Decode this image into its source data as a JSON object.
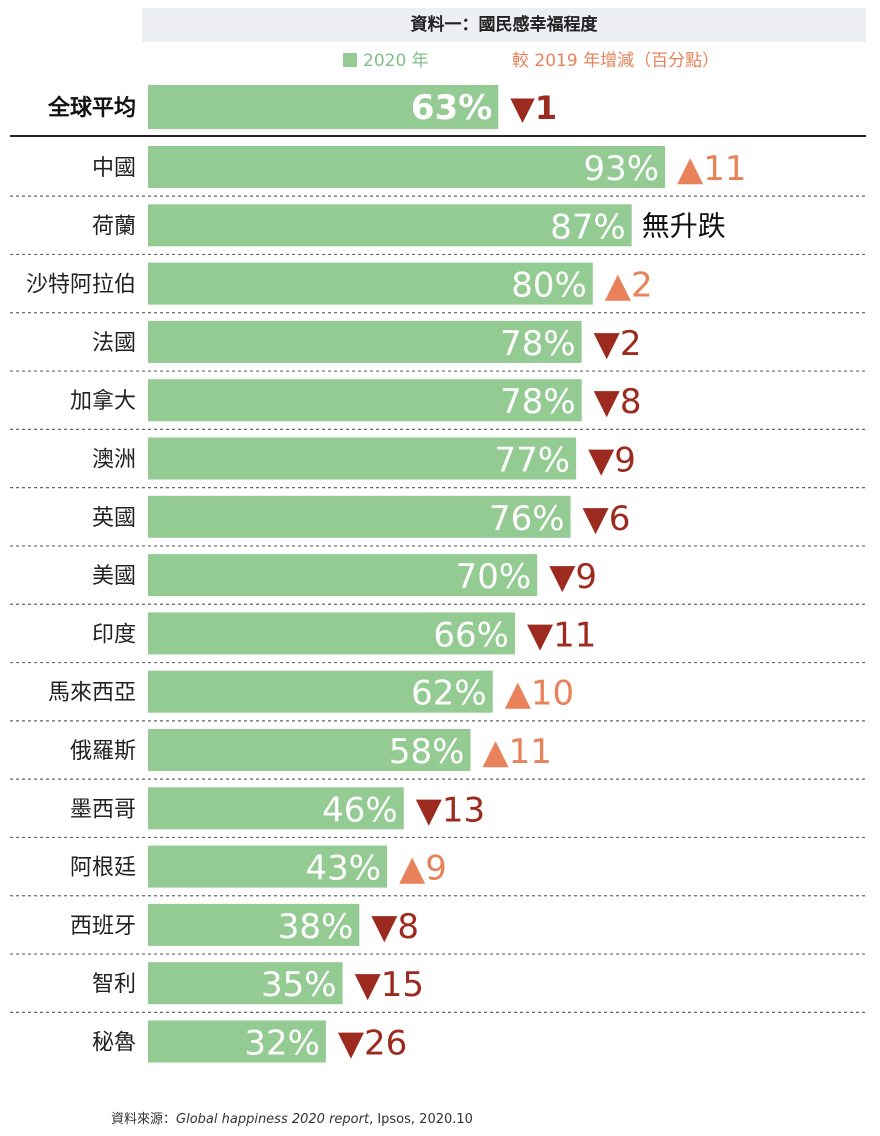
{
  "title": "資料一：國民感幸福程度",
  "legend": {
    "current": "2020 年",
    "change": "較 2019 年增減（百分點）"
  },
  "source": {
    "prefix": "資料來源：",
    "report": "Global happiness 2020 report",
    "suffix": ", Ipsos, 2020.10"
  },
  "colors": {
    "bar": "#93cb93",
    "bar_text": "#ffffff",
    "up": "#e8825a",
    "down": "#9c2a1e",
    "no_change": "#111111",
    "average_text": "#111111"
  },
  "chart_data": {
    "type": "bar",
    "orientation": "horizontal",
    "xlim": [
      0,
      100
    ],
    "unit": "%",
    "average": {
      "label": "全球平均",
      "value": 63,
      "value_label": "63%",
      "change": -1,
      "change_label": "▼1",
      "direction": "down"
    },
    "categories": [
      "中國",
      "荷蘭",
      "沙特阿拉伯",
      "法國",
      "加拿大",
      "澳洲",
      "英國",
      "美國",
      "印度",
      "馬來西亞",
      "俄羅斯",
      "墨西哥",
      "阿根廷",
      "西班牙",
      "智利",
      "秘魯"
    ],
    "values": [
      93,
      87,
      80,
      78,
      78,
      77,
      76,
      70,
      66,
      62,
      58,
      46,
      43,
      38,
      35,
      32
    ],
    "value_labels": [
      "93%",
      "87%",
      "80%",
      "78%",
      "78%",
      "77%",
      "76%",
      "70%",
      "66%",
      "62%",
      "58%",
      "46%",
      "43%",
      "38%",
      "35%",
      "32%"
    ],
    "changes": [
      11,
      0,
      2,
      -2,
      -8,
      -9,
      -6,
      -9,
      -11,
      10,
      11,
      -13,
      9,
      -8,
      -15,
      -26
    ],
    "change_labels": [
      "▲11",
      "無升跌",
      "▲2",
      "▼2",
      "▼8",
      "▼9",
      "▼6",
      "▼9",
      "▼11",
      "▲10",
      "▲11",
      "▼13",
      "▲9",
      "▼8",
      "▼15",
      "▼26"
    ]
  }
}
